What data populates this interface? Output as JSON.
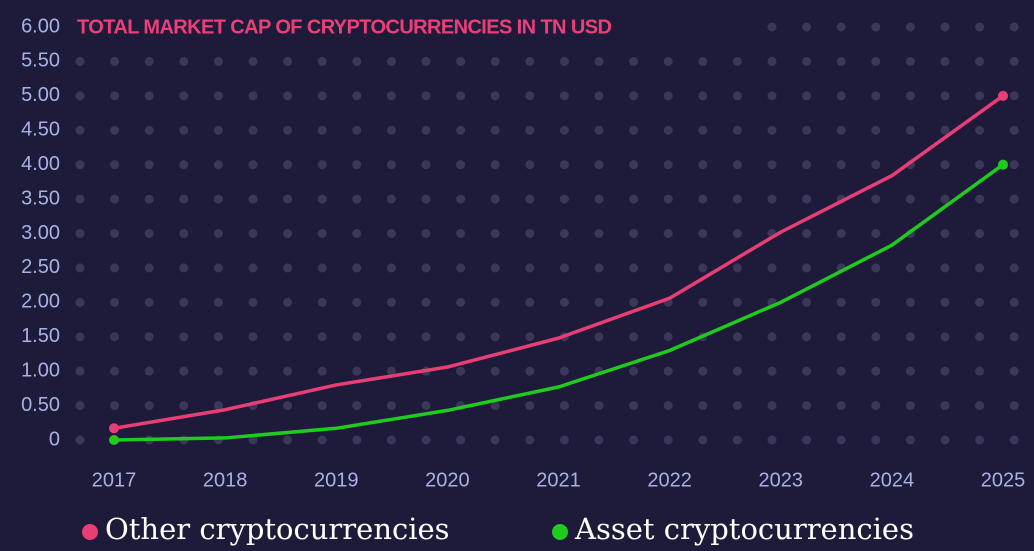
{
  "chart_data": {
    "type": "line",
    "title": "TOTAL MARKET CAP OF CRYPTOCURRENCIES IN TN USD",
    "categories": [
      "2017",
      "2018",
      "2019",
      "2020",
      "2021",
      "2022",
      "2023",
      "2024",
      "2025"
    ],
    "series": [
      {
        "name": "Other cryptocurrencies",
        "color": "#e83e74",
        "values": [
          0.17,
          0.44,
          0.8,
          1.06,
          1.48,
          2.06,
          3.02,
          3.84,
          5.0
        ]
      },
      {
        "name": "Asset cryptocurrencies",
        "color": "#1ecb1e",
        "values": [
          0,
          0.03,
          0.17,
          0.43,
          0.77,
          1.3,
          2.0,
          2.83,
          4.0
        ]
      }
    ],
    "ylim": [
      0,
      6
    ],
    "yticks": [
      0,
      {
        "value": 0.5,
        "label": "0.50"
      },
      {
        "value": 1,
        "label": "1.00"
      },
      {
        "value": 1.5,
        "label": "1.50"
      },
      {
        "value": 2,
        "label": "2.00"
      },
      {
        "value": 2.5,
        "label": "2.50"
      },
      {
        "value": 3,
        "label": "3.00"
      },
      {
        "value": 3.5,
        "label": "3.50"
      },
      {
        "value": 4,
        "label": "4.00"
      },
      {
        "value": 4.5,
        "label": "4.50"
      },
      {
        "value": 5,
        "label": "5.00"
      },
      {
        "value": 5.5,
        "label": "5.50"
      },
      {
        "value": 6,
        "label": "6.00"
      }
    ],
    "grid": true
  }
}
